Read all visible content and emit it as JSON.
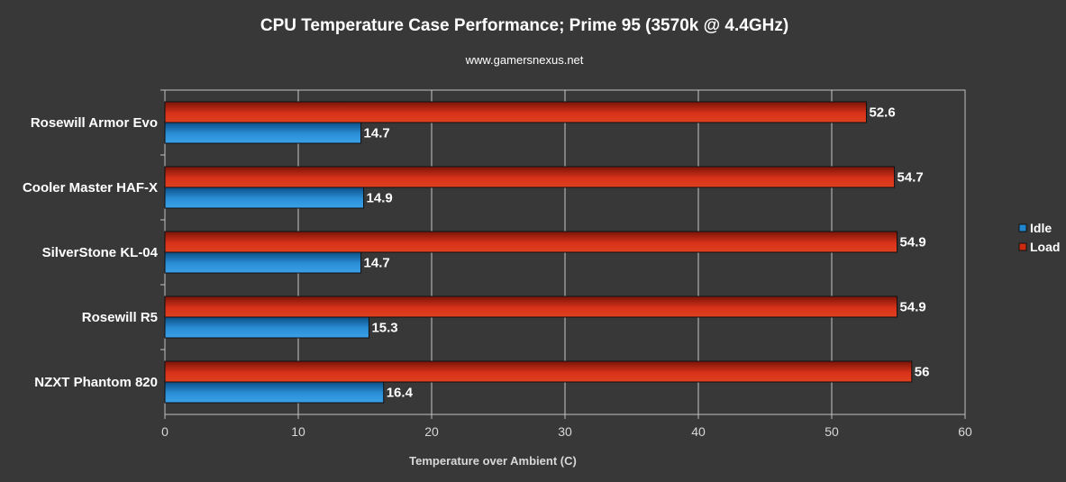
{
  "chart_data": {
    "type": "bar",
    "orientation": "horizontal",
    "title": "CPU Temperature Case Performance; Prime 95 (3570k @ 4.4GHz)",
    "subtitle": "www.gamersnexus.net",
    "xlabel": "Temperature over Ambient (C)",
    "ylabel": "",
    "xlim": [
      0,
      60
    ],
    "x_ticks": [
      0,
      10,
      20,
      30,
      40,
      50,
      60
    ],
    "grid": true,
    "legend_position": "right",
    "categories": [
      "Rosewill Armor Evo",
      "Cooler Master HAF-X",
      "SilverStone KL-04",
      "Rosewill R5",
      "NZXT Phantom 820"
    ],
    "series": [
      {
        "name": "Load",
        "color": "#cc2a10",
        "values": [
          52.6,
          54.7,
          54.9,
          54.9,
          56
        ]
      },
      {
        "name": "Idle",
        "color": "#1f86cf",
        "values": [
          14.7,
          14.9,
          14.7,
          15.3,
          16.4
        ]
      }
    ],
    "legend_order": [
      "Idle",
      "Load"
    ]
  }
}
